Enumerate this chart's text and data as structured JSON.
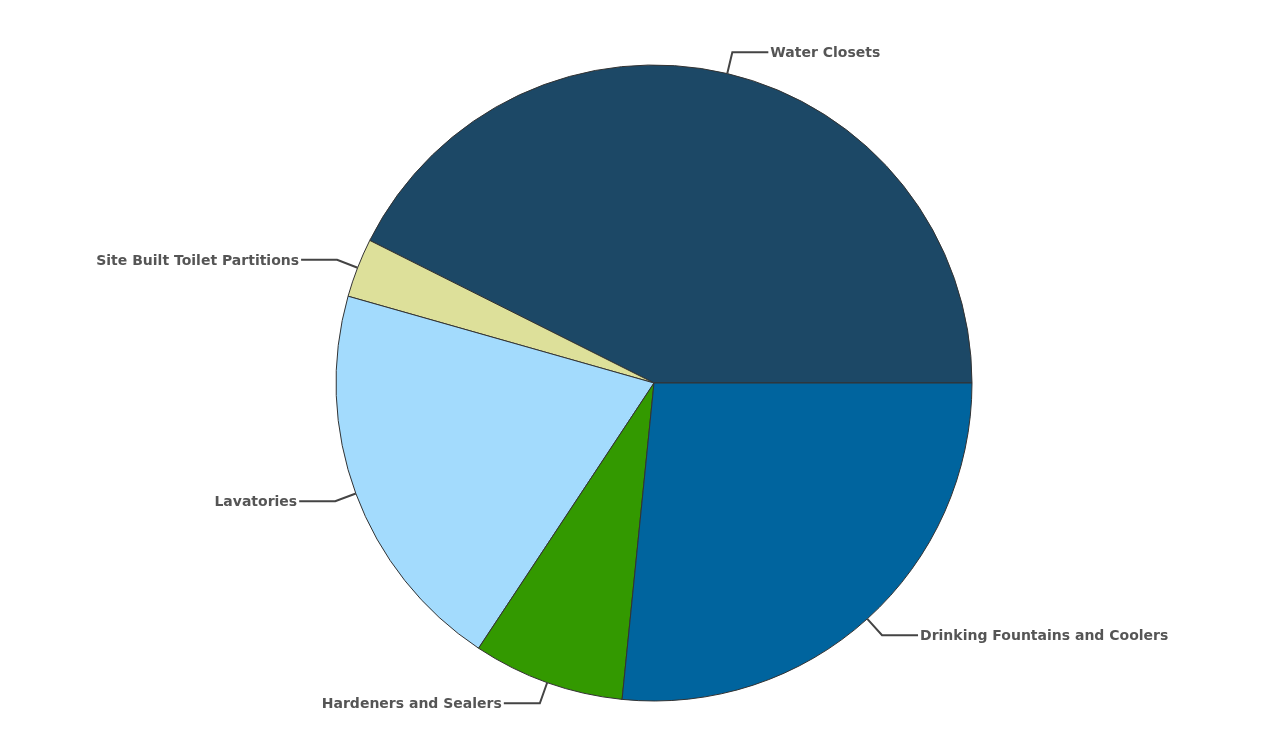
{
  "chart_data": {
    "type": "pie",
    "categories": [
      "Water Closets",
      "Site Built Toilet Partitions",
      "Lavatories",
      "Hardeners and Sealers",
      "Drinking Fountains and Coolers"
    ],
    "values": [
      42.6,
      3.0,
      20.1,
      7.7,
      26.6
    ],
    "colors": [
      "#1c4866",
      "#dde09a",
      "#a3dbfd",
      "#339900",
      "#00649e"
    ],
    "legend": false
  }
}
